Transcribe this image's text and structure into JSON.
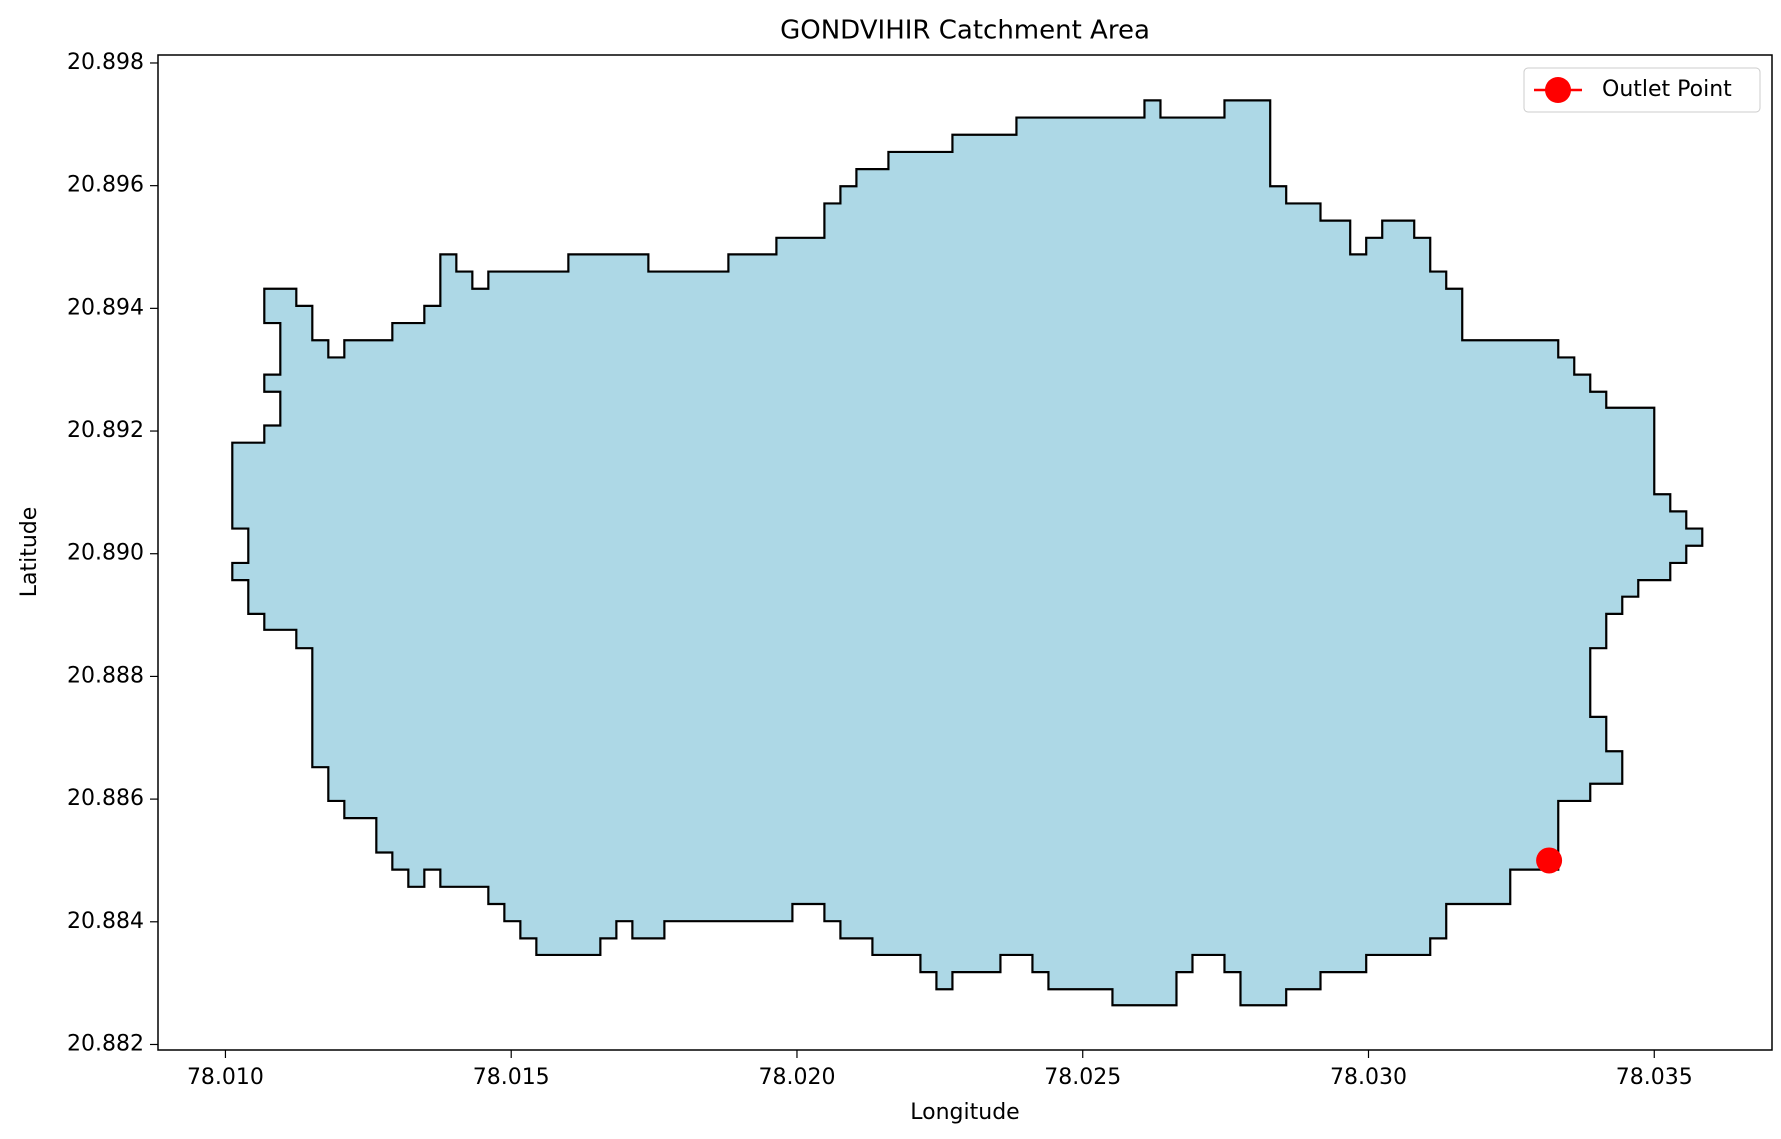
{
  "chart_data": {
    "type": "area",
    "title": "GONDVIHIR Catchment Area",
    "x_label": "Longitude",
    "y_label": "Latitude",
    "xlim": [
      78.00882,
      78.03706
    ],
    "ylim": [
      20.88191,
      20.89813
    ],
    "xticks": [
      {
        "value": 78.01,
        "label": "78.010"
      },
      78.015,
      {
        "value": 78.02,
        "label": "78.020"
      },
      78.025,
      {
        "value": 78.03,
        "label": "78.030"
      },
      78.035
    ],
    "yticks": [
      20.882,
      20.884,
      20.886,
      20.888,
      {
        "value": 20.89,
        "label": "20.890"
      },
      20.892,
      20.894,
      20.896,
      20.898
    ],
    "polygon": {
      "color": "#add8e6",
      "edgecolor": "#000000",
      "x": [
        78.01068,
        78.01124,
        78.01124,
        78.01152,
        78.01152,
        78.0118,
        78.0118,
        78.01208,
        78.01208,
        78.01292,
        78.01292,
        78.01348,
        78.01348,
        78.01376,
        78.01376,
        78.01404,
        78.01404,
        78.01432,
        78.01432,
        78.0146,
        78.0146,
        78.016,
        78.016,
        78.0174,
        78.0174,
        78.0188,
        78.0188,
        78.01964,
        78.01964,
        78.02048,
        78.02048,
        78.02076,
        78.02076,
        78.02104,
        78.02104,
        78.0216,
        78.0216,
        78.02272,
        78.02272,
        78.02384,
        78.02384,
        78.02608,
        78.02608,
        78.02636,
        78.02636,
        78.02748,
        78.02748,
        78.02828,
        78.02828,
        78.02856,
        78.02856,
        78.02916,
        78.02916,
        78.02968,
        78.02968,
        78.02996,
        78.02996,
        78.03024,
        78.03024,
        78.0308,
        78.0308,
        78.03108,
        78.03108,
        78.03136,
        78.03136,
        78.03164,
        78.03164,
        78.03332,
        78.03332,
        78.0336,
        78.0336,
        78.03388,
        78.03388,
        78.03416,
        78.03416,
        78.035,
        78.035,
        78.03528,
        78.03528,
        78.03556,
        78.03556,
        78.03584,
        78.03584,
        78.03556,
        78.03556,
        78.03528,
        78.03528,
        78.03472,
        78.03472,
        78.03444,
        78.03444,
        78.03416,
        78.03416,
        78.03388,
        78.03388,
        78.03388,
        78.03416,
        78.03416,
        78.03444,
        78.03444,
        78.03388,
        78.03388,
        78.03332,
        78.03332,
        78.03248,
        78.03248,
        78.03136,
        78.03136,
        78.03108,
        78.03108,
        78.02996,
        78.02996,
        78.02916,
        78.02916,
        78.02856,
        78.02856,
        78.02776,
        78.02776,
        78.02748,
        78.02748,
        78.02692,
        78.02692,
        78.02664,
        78.02664,
        78.02552,
        78.02552,
        78.0244,
        78.0244,
        78.02412,
        78.02412,
        78.02356,
        78.02356,
        78.02272,
        78.02272,
        78.02244,
        78.02244,
        78.02216,
        78.02216,
        78.02132,
        78.02132,
        78.02076,
        78.02076,
        78.02048,
        78.02048,
        78.01992,
        78.01992,
        78.01768,
        78.01768,
        78.01712,
        78.01712,
        78.01684,
        78.01684,
        78.01656,
        78.01656,
        78.01544,
        78.01544,
        78.01516,
        78.01516,
        78.01488,
        78.01488,
        78.0146,
        78.0146,
        78.01376,
        78.01376,
        78.01348,
        78.01348,
        78.0132,
        78.0132,
        78.01292,
        78.01292,
        78.01264,
        78.01264,
        78.01208,
        78.01208,
        78.0118,
        78.0118,
        78.01152,
        78.01152,
        78.01124,
        78.01124,
        78.01068,
        78.01068,
        78.0104,
        78.0104,
        78.01012,
        78.01012,
        78.0104,
        78.0104,
        78.01012,
        78.01012,
        78.01068,
        78.01068,
        78.01096,
        78.01096,
        78.01068,
        78.01068,
        78.01096,
        78.01096,
        78.01068
      ],
      "y": [
        20.89432,
        20.89432,
        20.89404,
        20.89404,
        20.89348,
        20.89348,
        20.8932,
        20.8932,
        20.89348,
        20.89348,
        20.89376,
        20.89376,
        20.89404,
        20.89404,
        20.89488,
        20.89488,
        20.8946,
        20.8946,
        20.89432,
        20.89432,
        20.8946,
        20.8946,
        20.89488,
        20.89488,
        20.8946,
        20.8946,
        20.89488,
        20.89488,
        20.89515,
        20.89515,
        20.89571,
        20.89571,
        20.89599,
        20.89599,
        20.89627,
        20.89627,
        20.89655,
        20.89655,
        20.89683,
        20.89683,
        20.89711,
        20.89711,
        20.89739,
        20.89739,
        20.89711,
        20.89711,
        20.89739,
        20.89739,
        20.89599,
        20.89599,
        20.89571,
        20.89571,
        20.89543,
        20.89543,
        20.89488,
        20.89488,
        20.89515,
        20.89515,
        20.89543,
        20.89543,
        20.89515,
        20.89515,
        20.8946,
        20.8946,
        20.89432,
        20.89432,
        20.89348,
        20.89348,
        20.8932,
        20.8932,
        20.89292,
        20.89292,
        20.89264,
        20.89264,
        20.89238,
        20.89238,
        20.89097,
        20.89097,
        20.89069,
        20.89069,
        20.89041,
        20.89041,
        20.89013,
        20.89013,
        20.88985,
        20.88985,
        20.88957,
        20.88957,
        20.8893,
        20.8893,
        20.88902,
        20.88902,
        20.88846,
        20.88846,
        20.8879,
        20.88734,
        20.88734,
        20.88678,
        20.88678,
        20.88625,
        20.88625,
        20.88597,
        20.88597,
        20.88485,
        20.88485,
        20.88429,
        20.88429,
        20.88373,
        20.88373,
        20.88346,
        20.88346,
        20.88318,
        20.88318,
        20.8829,
        20.8829,
        20.88264,
        20.88264,
        20.88318,
        20.88318,
        20.88346,
        20.88346,
        20.88318,
        20.88318,
        20.88264,
        20.88264,
        20.8829,
        20.8829,
        20.88318,
        20.88318,
        20.88346,
        20.88346,
        20.88318,
        20.88318,
        20.8829,
        20.8829,
        20.88318,
        20.88318,
        20.88346,
        20.88346,
        20.88373,
        20.88373,
        20.88401,
        20.88401,
        20.88429,
        20.88429,
        20.88401,
        20.88401,
        20.88373,
        20.88373,
        20.88401,
        20.88401,
        20.88373,
        20.88373,
        20.88346,
        20.88346,
        20.88373,
        20.88373,
        20.88401,
        20.88401,
        20.88429,
        20.88429,
        20.88457,
        20.88457,
        20.88485,
        20.88485,
        20.88457,
        20.88457,
        20.88485,
        20.88485,
        20.88513,
        20.88513,
        20.88569,
        20.88569,
        20.88597,
        20.88597,
        20.88652,
        20.88652,
        20.88846,
        20.88846,
        20.88876,
        20.88876,
        20.88902,
        20.88902,
        20.88957,
        20.88957,
        20.88985,
        20.88985,
        20.89041,
        20.89041,
        20.89181,
        20.89181,
        20.89209,
        20.89209,
        20.89264,
        20.89264,
        20.89292,
        20.89292,
        20.89376,
        20.89376
      ]
    },
    "points": [
      {
        "name": "Outlet Point",
        "color": "#ff0000",
        "x": 78.03316,
        "y": 20.885
      }
    ],
    "legend": "upper right"
  }
}
